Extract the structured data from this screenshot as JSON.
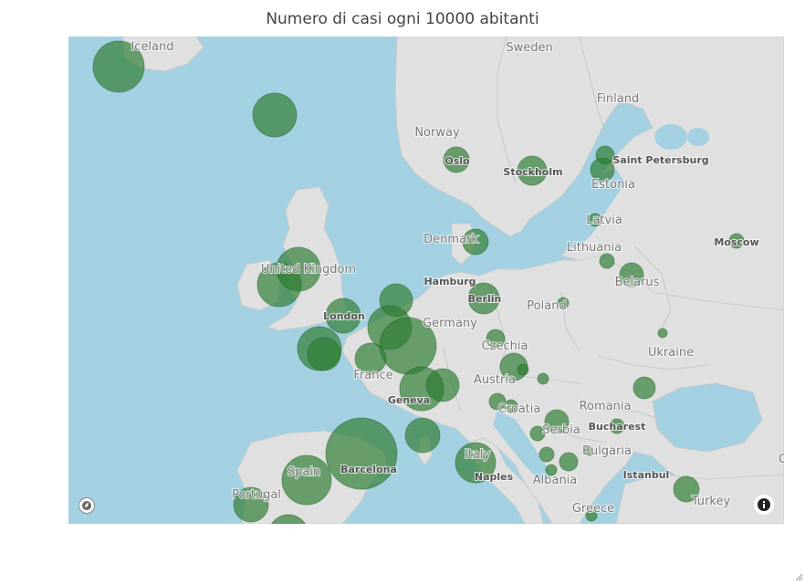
{
  "title": "Numero di casi ogni 10000 abitanti",
  "colors": {
    "sea": "#a4d1e1",
    "land": "#e0e0e0",
    "border": "#c4c4c4",
    "bubble_fill": "#2e7d32",
    "bubble_stroke": "#1b5e20",
    "label_country": "#777777",
    "label_city": "#555555"
  },
  "icons": [
    "mapbox-logo-icon",
    "info-icon",
    "resize-handle-icon"
  ],
  "labels": {
    "countries": [
      {
        "id": "iceland",
        "text": "Iceland"
      },
      {
        "id": "sweden",
        "text": "Sweden"
      },
      {
        "id": "norway",
        "text": "Norway"
      },
      {
        "id": "finland",
        "text": "Finland"
      },
      {
        "id": "estonia",
        "text": "Estonia"
      },
      {
        "id": "latvia",
        "text": "Latvia"
      },
      {
        "id": "lithuania",
        "text": "Lithuania"
      },
      {
        "id": "denmark",
        "text": "Denmark"
      },
      {
        "id": "united-kingdom",
        "text": "United Kingdom"
      },
      {
        "id": "belarus",
        "text": "Belarus"
      },
      {
        "id": "poland",
        "text": "Poland"
      },
      {
        "id": "germany",
        "text": "Germany"
      },
      {
        "id": "czechia",
        "text": "Czechia"
      },
      {
        "id": "ukraine",
        "text": "Ukraine"
      },
      {
        "id": "france",
        "text": "France"
      },
      {
        "id": "austria",
        "text": "Austria"
      },
      {
        "id": "croatia",
        "text": "Croatia"
      },
      {
        "id": "romania",
        "text": "Romania"
      },
      {
        "id": "serbia",
        "text": "Serbia"
      },
      {
        "id": "bulgaria",
        "text": "Bulgaria"
      },
      {
        "id": "italy",
        "text": "Italy"
      },
      {
        "id": "spain",
        "text": "Spain"
      },
      {
        "id": "albania",
        "text": "Albania"
      },
      {
        "id": "portugal",
        "text": "Portugal"
      },
      {
        "id": "greece",
        "text": "Greece"
      },
      {
        "id": "turkey",
        "text": "Turkey"
      },
      {
        "id": "g-cut",
        "text": "G"
      }
    ],
    "cities": [
      {
        "id": "oslo",
        "text": "Oslo"
      },
      {
        "id": "stockholm",
        "text": "Stockholm"
      },
      {
        "id": "saint-petersburg",
        "text": "Saint Petersburg"
      },
      {
        "id": "moscow",
        "text": "Moscow"
      },
      {
        "id": "hamburg",
        "text": "Hamburg"
      },
      {
        "id": "berlin",
        "text": "Berlin"
      },
      {
        "id": "london",
        "text": "London"
      },
      {
        "id": "geneva",
        "text": "Geneva"
      },
      {
        "id": "bucharest",
        "text": "Bucharest"
      },
      {
        "id": "barcelona",
        "text": "Barcelona"
      },
      {
        "id": "naples",
        "text": "Naples"
      },
      {
        "id": "istanbul",
        "text": "Istanbul"
      }
    ]
  }
}
